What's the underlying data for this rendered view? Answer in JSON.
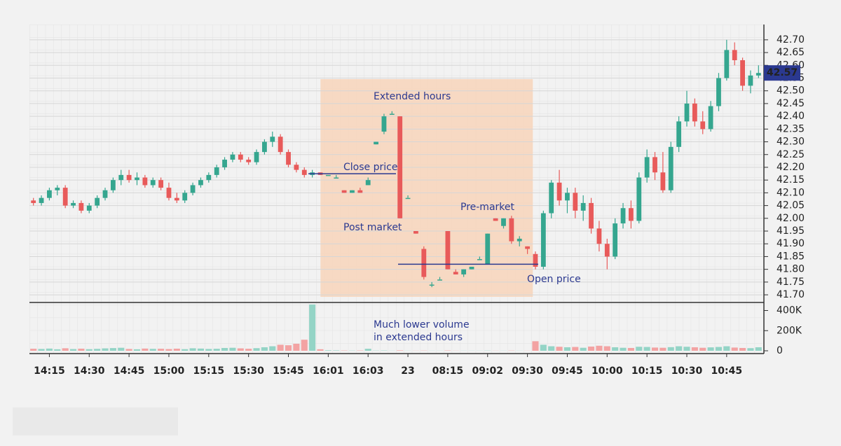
{
  "chart_data": {
    "type": "candlestick",
    "categories": [
      null,
      null,
      "14:15",
      null,
      null,
      null,
      null,
      "14:30",
      null,
      null,
      null,
      null,
      "14:45",
      null,
      null,
      null,
      null,
      "15:00",
      null,
      null,
      null,
      null,
      "15:15",
      null,
      null,
      null,
      null,
      "15:30",
      null,
      null,
      null,
      null,
      "15:45",
      null,
      null,
      null,
      null,
      "16:01",
      null,
      null,
      null,
      null,
      "16:03",
      null,
      null,
      null,
      null,
      "23",
      null,
      null,
      null,
      null,
      "08:15",
      null,
      null,
      null,
      null,
      "09:02",
      null,
      null,
      null,
      null,
      "09:30",
      null,
      null,
      null,
      null,
      "09:45",
      null,
      null,
      null,
      null,
      "10:00",
      null,
      null,
      null,
      null,
      "10:15",
      null,
      null,
      null,
      null,
      "10:30",
      null,
      null,
      null,
      null,
      "10:45",
      null,
      null,
      null,
      null
    ],
    "open": [
      42.07,
      42.06,
      42.08,
      42.11,
      42.12,
      42.05,
      42.06,
      42.03,
      42.05,
      42.08,
      42.11,
      42.15,
      42.17,
      42.15,
      42.16,
      42.13,
      42.15,
      42.12,
      42.08,
      42.07,
      42.1,
      42.13,
      42.15,
      42.17,
      42.2,
      42.23,
      42.25,
      42.23,
      42.22,
      42.26,
      42.3,
      42.32,
      42.26,
      42.21,
      42.19,
      42.17,
      42.18,
      42.17,
      42.16,
      42.11,
      42.1,
      42.11,
      42.13,
      42.29,
      42.34,
      42.41,
      42.4,
      42.08,
      41.95,
      41.88,
      41.74,
      41.76,
      41.95,
      41.79,
      41.78,
      41.8,
      41.84,
      41.82,
      42.0,
      41.97,
      42.0,
      41.91,
      41.89,
      41.86,
      41.81,
      42.02,
      42.14,
      42.07,
      42.1,
      42.03,
      42.06,
      41.96,
      41.9,
      41.85,
      41.98,
      42.04,
      41.99,
      42.16,
      42.24,
      42.18,
      42.11,
      42.28,
      42.38,
      42.45,
      42.38,
      42.35,
      42.44,
      42.55,
      42.66,
      42.62,
      42.52,
      42.56
    ],
    "high": [
      42.08,
      42.09,
      42.12,
      42.13,
      42.13,
      42.07,
      42.07,
      42.06,
      42.09,
      42.12,
      42.16,
      42.19,
      42.19,
      42.18,
      42.17,
      42.16,
      42.16,
      42.14,
      42.1,
      42.11,
      42.14,
      42.16,
      42.18,
      42.21,
      42.24,
      42.26,
      42.26,
      42.24,
      42.27,
      42.31,
      42.34,
      42.33,
      42.27,
      42.22,
      42.2,
      42.19,
      42.18,
      42.17,
      42.17,
      42.11,
      42.11,
      42.12,
      42.16,
      42.3,
      42.41,
      42.42,
      42.4,
      42.09,
      41.95,
      41.89,
      41.75,
      41.77,
      41.95,
      41.8,
      41.8,
      41.81,
      41.85,
      41.94,
      42.0,
      42.0,
      42.01,
      41.93,
      41.89,
      41.87,
      42.03,
      42.15,
      42.19,
      42.12,
      42.12,
      42.09,
      42.08,
      41.99,
      41.92,
      42.0,
      42.06,
      42.07,
      42.18,
      42.27,
      42.26,
      42.26,
      42.3,
      42.4,
      42.5,
      42.47,
      42.42,
      42.46,
      42.57,
      42.7,
      42.69,
      42.63,
      42.58,
      42.6
    ],
    "low": [
      42.05,
      42.05,
      42.07,
      42.09,
      42.04,
      42.04,
      42.02,
      42.02,
      42.04,
      42.07,
      42.1,
      42.13,
      42.14,
      42.13,
      42.12,
      42.12,
      42.11,
      42.07,
      42.06,
      42.06,
      42.09,
      42.12,
      42.14,
      42.16,
      42.19,
      42.22,
      42.22,
      42.21,
      42.21,
      42.25,
      42.28,
      42.25,
      42.2,
      42.18,
      42.16,
      42.16,
      42.17,
      42.17,
      42.16,
      42.1,
      42.1,
      42.1,
      42.13,
      42.29,
      42.33,
      42.41,
      42.0,
      42.08,
      41.94,
      41.76,
      41.73,
      41.76,
      41.8,
      41.78,
      41.77,
      41.8,
      41.84,
      41.82,
      41.99,
      41.96,
      41.9,
      41.89,
      41.86,
      41.8,
      41.8,
      42.0,
      42.05,
      42.02,
      42.0,
      41.99,
      41.94,
      41.87,
      41.8,
      41.84,
      41.96,
      41.96,
      41.98,
      42.14,
      42.15,
      42.1,
      42.1,
      42.26,
      42.36,
      42.36,
      42.33,
      42.34,
      42.42,
      42.54,
      42.6,
      42.5,
      42.49,
      42.55
    ],
    "close": [
      42.06,
      42.08,
      42.11,
      42.12,
      42.05,
      42.06,
      42.03,
      42.05,
      42.08,
      42.11,
      42.15,
      42.17,
      42.15,
      42.16,
      42.13,
      42.15,
      42.12,
      42.08,
      42.07,
      42.1,
      42.13,
      42.15,
      42.17,
      42.2,
      42.23,
      42.25,
      42.23,
      42.22,
      42.26,
      42.3,
      42.32,
      42.26,
      42.21,
      42.19,
      42.17,
      42.18,
      42.17,
      42.17,
      42.16,
      42.1,
      42.11,
      42.1,
      42.15,
      42.3,
      42.4,
      42.41,
      42.0,
      42.08,
      41.94,
      41.77,
      41.74,
      41.76,
      41.8,
      41.78,
      41.8,
      41.81,
      41.84,
      41.94,
      41.99,
      42.0,
      41.91,
      41.92,
      41.88,
      41.81,
      42.02,
      42.14,
      42.07,
      42.1,
      42.03,
      42.06,
      41.96,
      41.9,
      41.85,
      41.98,
      42.04,
      41.99,
      42.16,
      42.24,
      42.18,
      42.11,
      42.28,
      42.38,
      42.45,
      42.38,
      42.35,
      42.44,
      42.55,
      42.66,
      42.62,
      42.52,
      42.56,
      42.57
    ],
    "volume": [
      20000,
      18000,
      22000,
      15000,
      25000,
      17000,
      21000,
      16000,
      19000,
      24000,
      27000,
      30000,
      18000,
      15000,
      22000,
      19000,
      20000,
      17000,
      21000,
      16000,
      25000,
      22000,
      18000,
      20000,
      28000,
      30000,
      24000,
      20000,
      26000,
      35000,
      45000,
      60000,
      55000,
      70000,
      110000,
      460000,
      15000,
      5000,
      4000,
      3000,
      2000,
      3000,
      20000,
      2000,
      3000,
      1000,
      4000,
      1000,
      1000,
      2000,
      1000,
      1000,
      3000,
      1000,
      1000,
      1000,
      1000,
      2000,
      1000,
      1000,
      2000,
      1000,
      1000,
      95000,
      60000,
      45000,
      40000,
      35000,
      38000,
      30000,
      42000,
      50000,
      45000,
      35000,
      30000,
      28000,
      40000,
      38000,
      32000,
      30000,
      36000,
      45000,
      40000,
      35000,
      30000,
      34000,
      38000,
      45000,
      32000,
      28000,
      26000,
      35000
    ],
    "up_color": "#35a68f",
    "down_color": "#e85a5a",
    "volume_up_color": "#94d4c6",
    "volume_down_color": "#f3a3a3",
    "ylim": [
      41.67,
      42.76
    ],
    "yticks": [
      {
        "value": 41.7,
        "label": "41.70"
      },
      41.75,
      {
        "value": 41.8,
        "label": "41.80"
      },
      41.85,
      {
        "value": 41.9,
        "label": "41.90"
      },
      41.95,
      {
        "value": 42,
        "label": "42.00"
      },
      42.05,
      {
        "value": 42.1,
        "label": "42.10"
      },
      42.15,
      {
        "value": 42.2,
        "label": "42.20"
      },
      42.25,
      {
        "value": 42.3,
        "label": "42.30"
      },
      42.35,
      {
        "value": 42.4,
        "label": "42.40"
      },
      42.45,
      {
        "value": 42.5,
        "label": "42.50"
      },
      42.55,
      {
        "value": 42.6,
        "label": "42.60"
      },
      42.65,
      {
        "value": 42.7,
        "label": "42.70"
      }
    ],
    "volume_ylim": [
      0,
      480000
    ],
    "volume_ticks": [
      0,
      {
        "value": 200000,
        "label": "200K"
      },
      {
        "value": 400000,
        "label": "400K"
      }
    ],
    "last_price": 42.57,
    "reference_lines": [
      {
        "label": "Close price",
        "value": 42.175,
        "color": "#2b3990"
      },
      {
        "label": "Open price",
        "value": 41.82,
        "color": "#2b3990"
      }
    ],
    "annotations": [
      "Extended hours",
      "Post market",
      "Pre-market",
      "Much lower volume",
      "in extended hours"
    ],
    "grid": true
  }
}
